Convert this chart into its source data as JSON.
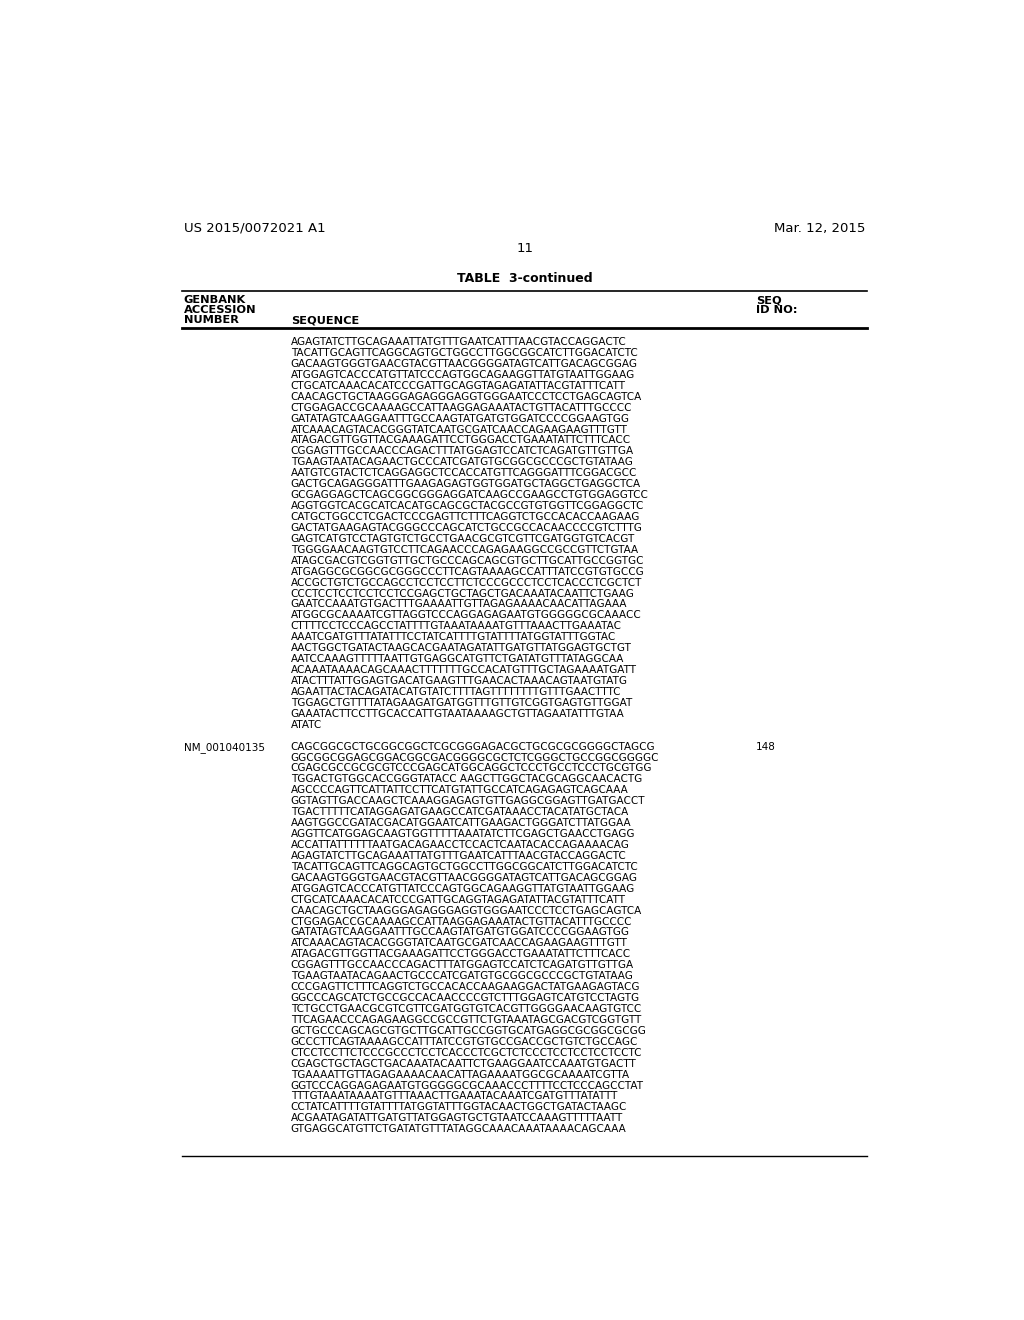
{
  "background_color": "#ffffff",
  "header_left": "US 2015/0072021 A1",
  "header_right": "Mar. 12, 2015",
  "page_number": "11",
  "table_title": "TABLE  3-continued",
  "col1_header_line1": "GENBANK",
  "col1_header_line2": "ACCESSION",
  "col1_header_line3": "NUMBER",
  "col2_header": "SEQUENCE",
  "col3_header_line1": "SEQ",
  "col3_header_line2": "ID NO:",
  "sequence_block1": [
    "AGAGTATCTTGCAGAAATTATGTTTGAATCATTTAACGTACCAGGACTC",
    "TACATTGCAGTTCAGGCAGTGCTGGCCTTGGCGGCATCTTGGACATCTC",
    "GACAAGTGGGTGAACGTACGTTAACGGGGATAGTCATTGACAGCGGAG",
    "ATGGAGTCACCCATGTTATCCCAGTGGCAGAAGGTTATGTAATTGGAAG",
    "CTGCATCAAACACATCCCGATTGCAGGTAGAGATATTACGTATTTCATT",
    "CAACAGCTGCTAAGGGAGAGGGAGGTGGGAATCCCTCCTGAGCAGTCA",
    "CTGGAGACCGCAAAAGCCATTAAGGAGAAATACTGTTACATTTGCCCC",
    "GATATAGTCAAGGAATTTGCCAAGTATGATGTGGATCCCCGGAAGTGG",
    "ATCAAACAGTACACGGGTATCAATGCGATCAACCAGAAGAAGTTTGTT",
    "ATAGACGTTGGTTACGAAAGATTCCTGGGACCTGAAATATTCTTTCACC",
    "CGGAGTTTGCCAACCCAGACTTTATGGAGTCCATCTCAGATGTTGTTGA",
    "TGAAGTAATACAGAACTGCCCATCGATGTGCGGCGCCCGCTGTATAAG",
    "AATGTCGTACTCTCAGGAGGCTCCACCATGTTCAGGGATTTCGGACGCC",
    "GACTGCAGAGGGATTTGAAGAGAGTGGTGGATGCTAGGCTGAGGCTCA",
    "GCGAGGAGCTCAGCGGCGGGAGGATCAAGCCGAAGCCTGTGGAGGTCC",
    "AGGTGGTCACGCATCACATGCAGCGCTACGCCGTGTGGTTCGGAGGCTC",
    "CATGCTGGCCTCGACTCCCGAGTTCTTTCAGGTCTGCCACACCAAGAAG",
    "GACTATGAAGAGTACGGGCCCAGCATCTGCCGCCACAACCCCGTCTTTG",
    "GAGTCATGTCCTAGTGTCTGCCTGAACGCGTCGTTCGATGGTGTCACGT",
    "TGGGGAACAAGTGTCCTTCAGAACCCAGAGAAGGCCGCCGTTCTGTAA",
    "ATAGCGACGTCGGTGTTGCTGCCCAGCAGCGTGCTTGCATTGCCGGTGC",
    "ATGAGGCGCGGCGCGGGCCCTTCAGTAAAAGCCATTTATCCGTGTGCCG",
    "ACCGCTGTCTGCCAGCCTCCTCCTTCTCCCGCCCTCCTCACCCTCGCTCT",
    "CCCTCCTCCTCCTCCTCCGAGCTGCTAGCTGACAAATACAATTCTGAAG",
    "GAATCCAAATGTGACTTTGAAAATTGTTAGAGAAAACAACATTAGAAA",
    "ATGGCGCAAAATCGTTAGGTCCCAGGAGAGAATGTGGGGGCGCAAACC",
    "CTTTTCCTCCCAGCCTATTTTGTAAATAAAATGTTTAAACTTGAAATAC",
    "AAATCGATGTTTATATTTCCTATCATTTTGTATTTTATGGTATTTGGTAC",
    "AACTGGCTGATACTAAGCACGAATAGATATTGATGTTATGGAGTGCTGT",
    "AATCCAAAGTTTTTAATTGTGAGGCATGTTCTGATATGTTTATAGGCAA",
    "ACAAATAAAACAGCAAACTTTTTTTGCCACATGTTTGCTAGAAAATGATT",
    "ATACTTTATTGGAGTGACATGAAGTTTGAACACTAAACAGTAATGTATG",
    "AGAATTACTACAGATACATGTATCTTTTAGTTTTTTTTGTTTGAACTTTC",
    "TGGAGCTGTTTTATAGAAGATGATGGTTTGTTGTCGGTGAGTGTTGGAT",
    "GAAATACTTCCTTGCACCATTGTAATAAAAGCTGTTAGAATATTTGTAA",
    "ATATC"
  ],
  "accession2": "NM_001040135",
  "seq_id2": "148",
  "sequence_block2": [
    "CAGCGGCGCTGCGGCGGCTCGCGGGAGACGCTGCGCGCGGGGCTAGCG",
    "GGCGGCGGAGCGGACGGCGACGGGGCGCTCTCGGGCTGCCGGCGGGGC",
    "CGAGCGCCGCGCGTCCCGAGCATGGCAGGCTCCCTGCCTCCCTGCGTGG",
    "TGGACTGTGGCACCGGGTATACC AAGCTTGGCTACGCAGGCAACACTG",
    "AGCCCCAGTTCATTATTCCTTCATGTATTGCCATCAGAGAGTCAGCAAA",
    "GGTAGTTGACCAAGCTCAAAGGAGAGTGTTGAGGCGGAGTTGATGACCT",
    "TGACTTTTTCATAGGAGATGAAGCCATCGATAAACCTACATATGCTACA",
    "AAGTGGCCGATACGACATGGAATCATTGAAGACTGGGATCTTATGGAA",
    "AGGTTCATGGAGCAAGTGGTTTTTAAATATCTTCGAGCTGAACCTGAGG",
    "ACCATTATTTTTTAATGACAGAACCTCCACTCAATACACCAGAAAACAG",
    "AGAGTATCTTGCAGAAATTATGTTTGAATCATTTAACGTACCAGGACTC",
    "TACATTGCAGTTCAGGCAGTGCTGGCCTTGGCGGCATCTTGGACATCTC",
    "GACAAGTGGGTGAACGTACGTTAACGGGGATAGTCATTGACAGCGGAG",
    "ATGGAGTCACCCATGTTATCCCAGTGGCAGAAGGTTATGTAATTGGAAG",
    "CTGCATCAAACACATCCCGATTGCAGGTAGAGATATTACGTATTTCATT",
    "CAACAGCTGCTAAGGGAGAGGGAGGTGGGAATCCCTCCTGAGCAGTCA",
    "CTGGAGACCGCAAAAGCCATTAAGGAGAAATACTGTTACATTTGCCCC",
    "GATATAGTCAAGGAATTTGCCAAGTATGATGTGGATCCCCGGAAGTGG",
    "ATCAAACAGTACACGGGTATCAATGCGATCAACCAGAAGAAGTTTGTT",
    "ATAGACGTTGGTTACGAAAGATTCCTGGGACCTGAAATATTCTTTCACC",
    "CGGAGTTTGCCAACCCAGACTTTATGGAGTCCATCTCAGATGTTGTTGA",
    "TGAAGTAATACAGAACTGCCCATCGATGTGCGGCGCCCGCTGTATAAG",
    "CCCGAGTTCTTTCAGGTCTGCCACACCAAGAAGGACTATGAAGAGTACG",
    "GGCCCAGCATCTGCCGCCACAACCCCGTCTTTGGAGTCATGTCCTAGTG",
    "TCTGCCTGAACGCGTCGTTCGATGGTGTCACGTTGGGGAACAAGTGTCC",
    "TTCAGAACCCAGAGAAGGCCGCCGTTCTGTAAATAGCGACGTCGGTGTT",
    "GCTGCCCAGCAGCGTGCTTGCATTGCCGGTGCATGAGGCGCGGCGCGG",
    "GCCCTTCAGTAAAAGCCATTTATCCGTGTGCCGACCGCTGTCTGCCAGC",
    "CTCCTCCTTCTCCCGCCCTCCTCACCCTCGCTCTCCCTCCTCCTCCTCCTC",
    "CGAGCTGCTAGCTGACAAATACAATTCTGAAGGAATCCAAATGTGACTT",
    "TGAAAATTGTTAGAGAAAACAACATTAGAAAATGGCGCAAAATCGTTA",
    "GGTCCCAGGAGAGAATGTGGGGGCGCAAACCCTTTTCCTCCCAGCCTAT",
    "TTTGTAAATAAAATGTTTAAACTTGAAATACAAATCGATGTTTATATTT",
    "CCTATCATTTTGTATTTTATGGTATTTGGTACAACTGGCTGATACTAAGC",
    "ACGAATAGATATTGATGTTATGGAGTGCTGTAATCCAAAGTTTTTAATT",
    "GTGAGGCATGTTCTGATATGTTTATAGGCAAACAAATAAAACAGCAAA"
  ]
}
